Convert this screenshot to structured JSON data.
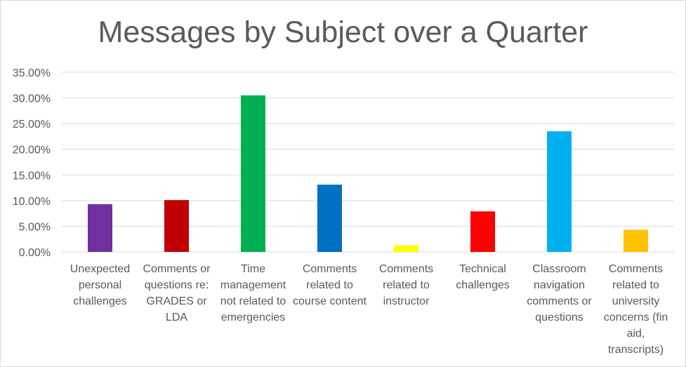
{
  "chart_data": {
    "type": "bar",
    "title": "Messages by Subject over a Quarter",
    "xlabel": "",
    "ylabel": "",
    "ylim": [
      0,
      0.35
    ],
    "y_ticks": [
      "0.00%",
      "5.00%",
      "10.00%",
      "15.00%",
      "20.00%",
      "25.00%",
      "30.00%",
      "35.00%"
    ],
    "grid": true,
    "legend": "none",
    "categories": [
      "Unexpected personal challenges",
      "Comments or questions re: GRADES or LDA",
      "Time management not related to emergencies",
      "Comments related to course content",
      "Comments related to instructor",
      "Technical challenges",
      "Classroom navigation comments or questions",
      "Comments related to university concerns (fin aid, transcripts)"
    ],
    "values": [
      0.093,
      0.101,
      0.305,
      0.131,
      0.013,
      0.079,
      0.235,
      0.043
    ],
    "colors": [
      "#7030a0",
      "#c00000",
      "#00b050",
      "#0070c0",
      "#ffff00",
      "#ff0000",
      "#00b0f0",
      "#ffc000"
    ]
  }
}
